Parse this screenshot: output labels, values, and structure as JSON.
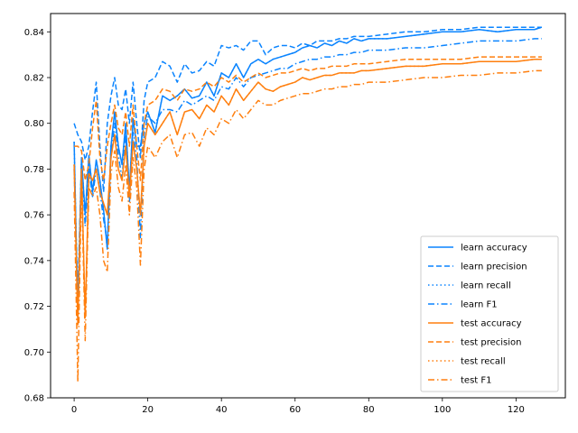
{
  "chart_data": {
    "type": "line",
    "title": "",
    "xlabel": "",
    "ylabel": "",
    "xlim": [
      -6.4,
      133.4
    ],
    "ylim": [
      0.68,
      0.848
    ],
    "xticks": [
      0,
      20,
      40,
      60,
      80,
      100,
      120
    ],
    "yticks": [
      0.68,
      0.7,
      0.72,
      0.74,
      0.76,
      0.78,
      0.8,
      0.82,
      0.84
    ],
    "ytick_labels": [
      "0.68",
      "0.70",
      "0.72",
      "0.74",
      "0.76",
      "0.78",
      "0.80",
      "0.82",
      "0.84"
    ],
    "grid": false,
    "legend_position": "lower-right",
    "colors": {
      "learn": "#1f77b4",
      "learn_display": "#0a84ff",
      "test": "#ff7f0e"
    },
    "series": [
      {
        "name": "learn accuracy",
        "color": "#0a84ff",
        "style": "solid",
        "x": [
          0,
          1,
          2,
          3,
          4,
          5,
          6,
          7,
          8,
          9,
          10,
          11,
          12,
          13,
          14,
          15,
          16,
          17,
          18,
          19,
          20,
          22,
          24,
          26,
          28,
          30,
          32,
          34,
          36,
          38,
          40,
          42,
          44,
          46,
          48,
          50,
          52,
          54,
          56,
          58,
          60,
          62,
          64,
          66,
          68,
          70,
          72,
          74,
          76,
          78,
          80,
          85,
          90,
          95,
          100,
          105,
          110,
          115,
          120,
          125,
          127
        ],
        "y": [
          0.792,
          0.715,
          0.785,
          0.76,
          0.786,
          0.77,
          0.784,
          0.775,
          0.762,
          0.745,
          0.79,
          0.805,
          0.79,
          0.782,
          0.8,
          0.77,
          0.802,
          0.79,
          0.79,
          0.8,
          0.805,
          0.796,
          0.812,
          0.81,
          0.812,
          0.815,
          0.811,
          0.812,
          0.818,
          0.812,
          0.822,
          0.82,
          0.826,
          0.82,
          0.826,
          0.828,
          0.826,
          0.828,
          0.829,
          0.83,
          0.831,
          0.833,
          0.834,
          0.833,
          0.835,
          0.834,
          0.836,
          0.835,
          0.837,
          0.836,
          0.837,
          0.837,
          0.838,
          0.839,
          0.84,
          0.84,
          0.841,
          0.84,
          0.841,
          0.841,
          0.842
        ]
      },
      {
        "name": "learn precision",
        "color": "#0a84ff",
        "style": "dashed",
        "x": [
          0,
          1,
          2,
          3,
          4,
          5,
          6,
          7,
          8,
          9,
          10,
          11,
          12,
          13,
          14,
          15,
          16,
          17,
          18,
          19,
          20,
          22,
          24,
          26,
          28,
          30,
          32,
          34,
          36,
          38,
          40,
          42,
          44,
          46,
          48,
          50,
          52,
          54,
          56,
          58,
          60,
          62,
          64,
          66,
          68,
          70,
          72,
          74,
          76,
          78,
          80,
          85,
          90,
          95,
          100,
          105,
          110,
          115,
          120,
          125,
          127
        ],
        "y": [
          0.8,
          0.795,
          0.792,
          0.784,
          0.79,
          0.805,
          0.818,
          0.79,
          0.77,
          0.8,
          0.812,
          0.82,
          0.808,
          0.806,
          0.815,
          0.8,
          0.818,
          0.8,
          0.785,
          0.81,
          0.818,
          0.82,
          0.827,
          0.825,
          0.818,
          0.826,
          0.822,
          0.823,
          0.827,
          0.825,
          0.834,
          0.833,
          0.834,
          0.832,
          0.836,
          0.836,
          0.83,
          0.833,
          0.834,
          0.834,
          0.833,
          0.835,
          0.834,
          0.836,
          0.836,
          0.836,
          0.837,
          0.837,
          0.838,
          0.838,
          0.838,
          0.839,
          0.84,
          0.84,
          0.841,
          0.841,
          0.842,
          0.842,
          0.842,
          0.842,
          0.842
        ]
      },
      {
        "name": "learn recall",
        "color": "#0a84ff",
        "style": "dotted",
        "x": [
          0,
          1,
          2,
          3,
          4,
          5,
          6,
          7,
          8,
          9,
          10,
          11,
          12,
          13,
          14,
          15,
          16,
          17,
          18,
          19,
          20,
          22,
          24,
          26,
          28,
          30,
          32,
          34,
          36,
          38,
          40,
          42,
          44,
          46,
          48,
          50,
          52,
          54,
          56,
          58,
          60,
          62,
          64,
          66,
          68,
          70,
          72,
          74,
          76,
          78,
          80,
          85,
          90,
          95,
          100,
          105,
          110,
          115,
          120,
          125,
          127
        ],
        "y": [
          0.792,
          0.715,
          0.785,
          0.76,
          0.786,
          0.77,
          0.784,
          0.775,
          0.762,
          0.745,
          0.79,
          0.805,
          0.79,
          0.782,
          0.8,
          0.77,
          0.802,
          0.79,
          0.79,
          0.8,
          0.805,
          0.796,
          0.812,
          0.81,
          0.812,
          0.815,
          0.811,
          0.812,
          0.818,
          0.812,
          0.822,
          0.82,
          0.826,
          0.82,
          0.826,
          0.828,
          0.826,
          0.828,
          0.829,
          0.83,
          0.831,
          0.833,
          0.834,
          0.833,
          0.835,
          0.834,
          0.836,
          0.835,
          0.837,
          0.836,
          0.837,
          0.837,
          0.838,
          0.839,
          0.84,
          0.84,
          0.841,
          0.84,
          0.841,
          0.841,
          0.842
        ]
      },
      {
        "name": "learn F1",
        "color": "#0a84ff",
        "style": "dashdot",
        "x": [
          0,
          1,
          2,
          3,
          4,
          5,
          6,
          7,
          8,
          9,
          10,
          11,
          12,
          13,
          14,
          15,
          16,
          17,
          18,
          19,
          20,
          22,
          24,
          26,
          28,
          30,
          32,
          34,
          36,
          38,
          40,
          42,
          44,
          46,
          48,
          50,
          52,
          54,
          56,
          58,
          60,
          62,
          64,
          66,
          68,
          70,
          72,
          74,
          76,
          78,
          80,
          85,
          90,
          95,
          100,
          105,
          110,
          115,
          120,
          125,
          127
        ],
        "y": [
          0.78,
          0.725,
          0.783,
          0.755,
          0.78,
          0.768,
          0.78,
          0.77,
          0.758,
          0.748,
          0.785,
          0.8,
          0.786,
          0.776,
          0.795,
          0.765,
          0.796,
          0.785,
          0.75,
          0.795,
          0.803,
          0.8,
          0.806,
          0.806,
          0.805,
          0.81,
          0.808,
          0.81,
          0.812,
          0.81,
          0.816,
          0.815,
          0.82,
          0.816,
          0.82,
          0.821,
          0.822,
          0.823,
          0.824,
          0.824,
          0.826,
          0.827,
          0.828,
          0.828,
          0.829,
          0.829,
          0.83,
          0.83,
          0.831,
          0.831,
          0.832,
          0.832,
          0.833,
          0.833,
          0.834,
          0.835,
          0.836,
          0.836,
          0.836,
          0.837,
          0.837
        ]
      },
      {
        "name": "test accuracy",
        "color": "#ff7f0e",
        "style": "solid",
        "x": [
          0,
          1,
          2,
          3,
          4,
          5,
          6,
          7,
          8,
          9,
          10,
          11,
          12,
          13,
          14,
          15,
          16,
          17,
          18,
          19,
          20,
          22,
          24,
          26,
          28,
          30,
          32,
          34,
          36,
          38,
          40,
          42,
          44,
          46,
          48,
          50,
          52,
          54,
          56,
          58,
          60,
          62,
          64,
          66,
          68,
          70,
          72,
          74,
          76,
          78,
          80,
          85,
          90,
          95,
          100,
          105,
          110,
          115,
          120,
          125,
          127
        ],
        "y": [
          0.782,
          0.712,
          0.78,
          0.715,
          0.778,
          0.775,
          0.78,
          0.77,
          0.765,
          0.76,
          0.785,
          0.795,
          0.78,
          0.775,
          0.79,
          0.768,
          0.792,
          0.78,
          0.76,
          0.79,
          0.8,
          0.795,
          0.8,
          0.805,
          0.795,
          0.805,
          0.806,
          0.802,
          0.808,
          0.805,
          0.812,
          0.808,
          0.815,
          0.81,
          0.814,
          0.818,
          0.815,
          0.814,
          0.816,
          0.817,
          0.818,
          0.82,
          0.819,
          0.82,
          0.821,
          0.821,
          0.822,
          0.822,
          0.822,
          0.823,
          0.823,
          0.824,
          0.825,
          0.825,
          0.826,
          0.826,
          0.827,
          0.827,
          0.827,
          0.828,
          0.828
        ]
      },
      {
        "name": "test precision",
        "color": "#ff7f0e",
        "style": "dashed",
        "x": [
          0,
          1,
          2,
          3,
          4,
          5,
          6,
          7,
          8,
          9,
          10,
          11,
          12,
          13,
          14,
          15,
          16,
          17,
          18,
          19,
          20,
          22,
          24,
          26,
          28,
          30,
          32,
          34,
          36,
          38,
          40,
          42,
          44,
          46,
          48,
          50,
          52,
          54,
          56,
          58,
          60,
          62,
          64,
          66,
          68,
          70,
          72,
          74,
          76,
          78,
          80,
          85,
          90,
          95,
          100,
          105,
          110,
          115,
          120,
          125,
          127
        ],
        "y": [
          0.79,
          0.79,
          0.788,
          0.775,
          0.782,
          0.798,
          0.81,
          0.785,
          0.775,
          0.79,
          0.8,
          0.808,
          0.798,
          0.795,
          0.805,
          0.79,
          0.808,
          0.79,
          0.775,
          0.8,
          0.808,
          0.81,
          0.815,
          0.814,
          0.81,
          0.815,
          0.814,
          0.815,
          0.818,
          0.816,
          0.82,
          0.818,
          0.821,
          0.818,
          0.82,
          0.822,
          0.82,
          0.821,
          0.822,
          0.822,
          0.823,
          0.824,
          0.823,
          0.824,
          0.824,
          0.825,
          0.825,
          0.825,
          0.826,
          0.826,
          0.826,
          0.827,
          0.828,
          0.828,
          0.828,
          0.828,
          0.829,
          0.829,
          0.829,
          0.829,
          0.829
        ]
      },
      {
        "name": "test recall",
        "color": "#ff7f0e",
        "style": "dotted",
        "x": [
          0,
          1,
          2,
          3,
          4,
          5,
          6,
          7,
          8,
          9,
          10,
          11,
          12,
          13,
          14,
          15,
          16,
          17,
          18,
          19,
          20,
          22,
          24,
          26,
          28,
          30,
          32,
          34,
          36,
          38,
          40,
          42,
          44,
          46,
          48,
          50,
          52,
          54,
          56,
          58,
          60,
          62,
          64,
          66,
          68,
          70,
          72,
          74,
          76,
          78,
          80,
          85,
          90,
          95,
          100,
          105,
          110,
          115,
          120,
          125,
          127
        ],
        "y": [
          0.782,
          0.712,
          0.78,
          0.715,
          0.778,
          0.775,
          0.78,
          0.77,
          0.765,
          0.76,
          0.785,
          0.795,
          0.78,
          0.775,
          0.79,
          0.768,
          0.792,
          0.78,
          0.76,
          0.79,
          0.8,
          0.795,
          0.8,
          0.805,
          0.795,
          0.805,
          0.806,
          0.802,
          0.808,
          0.805,
          0.812,
          0.808,
          0.815,
          0.81,
          0.814,
          0.818,
          0.815,
          0.814,
          0.816,
          0.817,
          0.818,
          0.82,
          0.819,
          0.82,
          0.821,
          0.821,
          0.822,
          0.822,
          0.822,
          0.823,
          0.823,
          0.824,
          0.825,
          0.825,
          0.826,
          0.826,
          0.827,
          0.827,
          0.827,
          0.828,
          0.828
        ]
      },
      {
        "name": "test F1",
        "color": "#ff7f0e",
        "style": "dashdot",
        "x": [
          0,
          1,
          2,
          3,
          4,
          5,
          6,
          7,
          8,
          9,
          10,
          11,
          12,
          13,
          14,
          15,
          16,
          17,
          18,
          19,
          20,
          22,
          24,
          26,
          28,
          30,
          32,
          34,
          36,
          38,
          40,
          42,
          44,
          46,
          48,
          50,
          52,
          54,
          56,
          58,
          60,
          62,
          64,
          66,
          68,
          70,
          72,
          74,
          76,
          78,
          80,
          85,
          90,
          95,
          100,
          105,
          110,
          115,
          120,
          125,
          127
        ],
        "y": [
          0.77,
          0.687,
          0.775,
          0.705,
          0.772,
          0.768,
          0.772,
          0.76,
          0.74,
          0.735,
          0.778,
          0.788,
          0.772,
          0.766,
          0.782,
          0.76,
          0.785,
          0.772,
          0.738,
          0.78,
          0.79,
          0.785,
          0.792,
          0.795,
          0.785,
          0.795,
          0.796,
          0.79,
          0.798,
          0.795,
          0.802,
          0.8,
          0.806,
          0.802,
          0.806,
          0.81,
          0.808,
          0.808,
          0.81,
          0.811,
          0.812,
          0.813,
          0.813,
          0.814,
          0.815,
          0.815,
          0.816,
          0.816,
          0.817,
          0.817,
          0.818,
          0.818,
          0.819,
          0.82,
          0.82,
          0.821,
          0.821,
          0.822,
          0.822,
          0.823,
          0.823
        ]
      }
    ]
  }
}
